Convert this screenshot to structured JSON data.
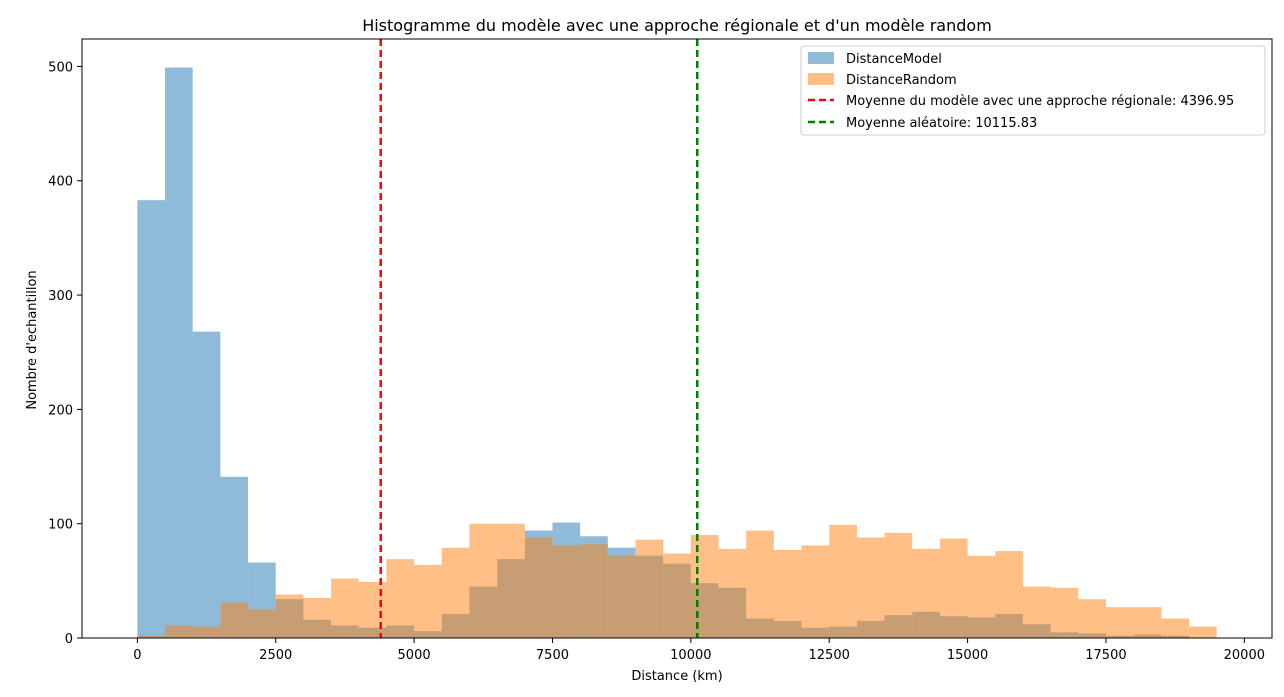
{
  "chart_data": {
    "type": "bar",
    "title": "Histogramme du modèle avec une approche régionale et d'un modèle random",
    "xlabel": "Distance (km)",
    "ylabel": "Nombre d'echantillon",
    "xlim": [
      -1000,
      20500
    ],
    "ylim": [
      0,
      524
    ],
    "x_ticks": [
      0,
      2500,
      5000,
      7500,
      10000,
      12500,
      15000,
      17500,
      20000
    ],
    "x_tick_labels": [
      "0",
      "2500",
      "5000",
      "7500",
      "10000",
      "12500",
      "15000",
      "17500",
      "20000"
    ],
    "y_ticks": [
      0,
      100,
      200,
      300,
      400,
      500
    ],
    "y_tick_labels": [
      "0",
      "100",
      "200",
      "300",
      "400",
      "500"
    ],
    "grid": false,
    "legend_position": "top-right",
    "series": [
      {
        "name": "DistanceModel",
        "kind": "histogram",
        "color": "#1f77b4",
        "alpha": 0.5,
        "bin_start": 0,
        "bin_width": 500,
        "counts": [
          383,
          499,
          268,
          141,
          66,
          34,
          16,
          11,
          9,
          11,
          6,
          21,
          45,
          69,
          94,
          101,
          89,
          79,
          72,
          65,
          48,
          44,
          17,
          15,
          9,
          10,
          15,
          20,
          23,
          19,
          18,
          21,
          12,
          5,
          4,
          2,
          3,
          2
        ]
      },
      {
        "name": "DistanceRandom",
        "kind": "histogram",
        "color": "#ff7f0e",
        "alpha": 0.5,
        "bin_start": 0,
        "bin_width": 500,
        "counts": [
          2,
          11,
          10,
          31,
          25,
          38,
          35,
          52,
          49,
          69,
          64,
          79,
          100,
          100,
          88,
          81,
          82,
          72,
          86,
          74,
          90,
          78,
          94,
          77,
          81,
          99,
          88,
          92,
          78,
          87,
          72,
          76,
          45,
          44,
          34,
          27,
          27,
          17,
          10
        ]
      },
      {
        "name": "Moyenne du modèle avec une approche régionale: 4396.95",
        "kind": "vline",
        "x": 4396.95,
        "color": "#ff0000",
        "linestyle": "dashed"
      },
      {
        "name": "Moyenne aléatoire: 10115.83",
        "kind": "vline",
        "x": 10115.83,
        "color": "#008000",
        "linestyle": "dashed"
      }
    ]
  }
}
